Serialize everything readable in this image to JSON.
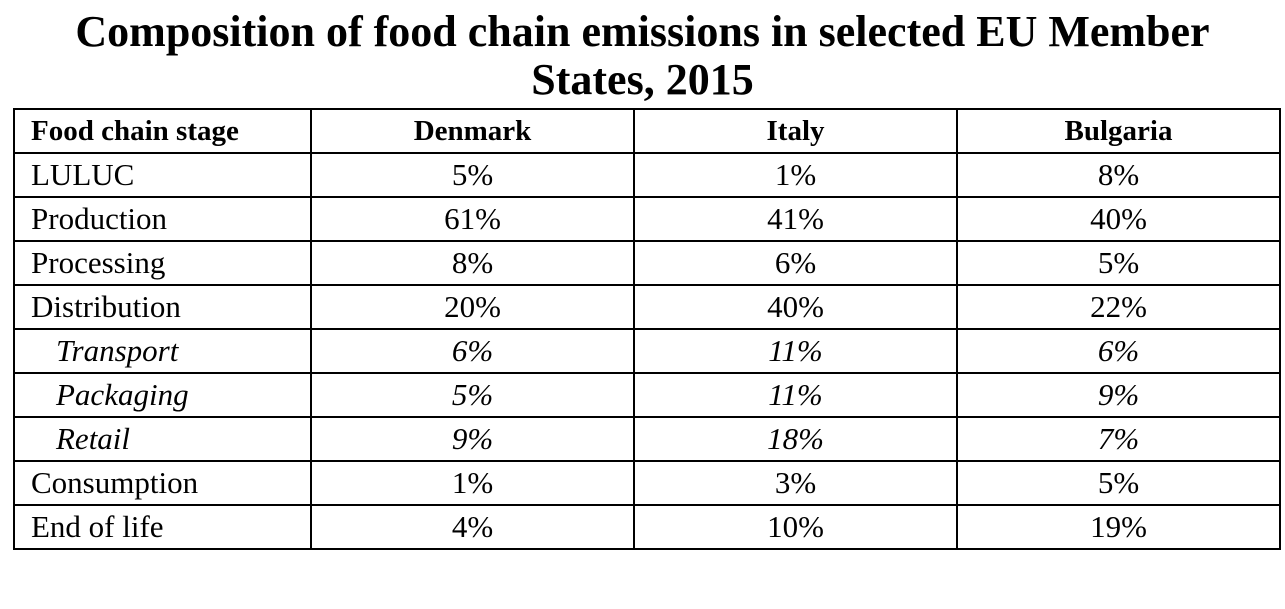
{
  "chart_data": {
    "type": "table",
    "title_lines": [
      "Composition of food chain emissions in selected EU Member",
      "States, 2015"
    ],
    "columns": [
      "Food chain stage",
      "Denmark",
      "Italy",
      "Bulgaria"
    ],
    "rows": [
      {
        "stage": "LULUC",
        "sub": false,
        "values": [
          "5%",
          "1%",
          "8%"
        ]
      },
      {
        "stage": "Production",
        "sub": false,
        "values": [
          "61%",
          "41%",
          "40%"
        ]
      },
      {
        "stage": "Processing",
        "sub": false,
        "values": [
          "8%",
          "6%",
          "5%"
        ]
      },
      {
        "stage": "Distribution",
        "sub": false,
        "values": [
          "20%",
          "40%",
          "22%"
        ]
      },
      {
        "stage": "Transport",
        "sub": true,
        "values": [
          "6%",
          "11%",
          "6%"
        ]
      },
      {
        "stage": "Packaging",
        "sub": true,
        "values": [
          "5%",
          "11%",
          "9%"
        ]
      },
      {
        "stage": "Retail",
        "sub": true,
        "values": [
          "9%",
          "18%",
          "7%"
        ]
      },
      {
        "stage": "Consumption",
        "sub": false,
        "values": [
          "1%",
          "3%",
          "5%"
        ]
      },
      {
        "stage": "End of life",
        "sub": false,
        "values": [
          "4%",
          "10%",
          "19%"
        ]
      }
    ]
  }
}
